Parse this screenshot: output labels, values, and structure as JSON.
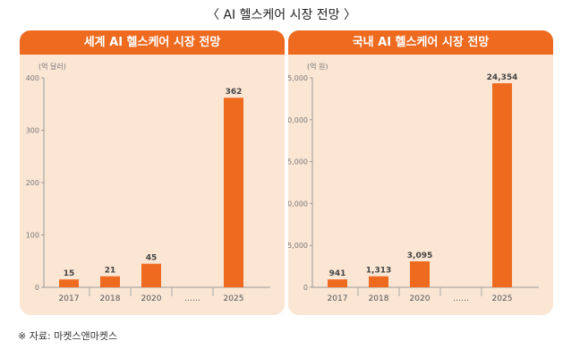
{
  "title": "〈 AI 헬스케어 시장 전망 〉",
  "source": "※ 자료: 마켓스앤마켓스",
  "colors": {
    "bar": "#ee6a1f",
    "header": "#ee6a1f",
    "panel_bg": "#fbe6d4"
  },
  "chart_data": [
    {
      "type": "bar",
      "title": "세계 AI 헬스케어 시장 전망",
      "unit": "(억 달러)",
      "categories": [
        "2017",
        "2018",
        "2020",
        "……",
        "2025"
      ],
      "values": [
        15,
        21,
        45,
        null,
        362
      ],
      "value_labels": [
        "15",
        "21",
        "45",
        "",
        "362"
      ],
      "yticks": [
        0,
        100,
        200,
        300,
        400
      ],
      "ytick_labels": [
        "0",
        "100",
        "200",
        "300",
        "400"
      ],
      "ylim": [
        0,
        400
      ],
      "grid": false
    },
    {
      "type": "bar",
      "title": "국내 AI 헬스케어 시장 전망",
      "unit": "(억 원)",
      "categories": [
        "2017",
        "2018",
        "2020",
        "……",
        "2025"
      ],
      "values": [
        941,
        1313,
        3095,
        null,
        24354
      ],
      "value_labels": [
        "941",
        "1,313",
        "3,095",
        "",
        "24,354"
      ],
      "yticks": [
        0,
        5000,
        10000,
        15000,
        20000,
        25000
      ],
      "ytick_labels": [
        "0",
        "5,000",
        "10,000",
        "15,000",
        "20,000",
        "25,000"
      ],
      "ylim": [
        0,
        25000
      ],
      "grid": false
    }
  ]
}
